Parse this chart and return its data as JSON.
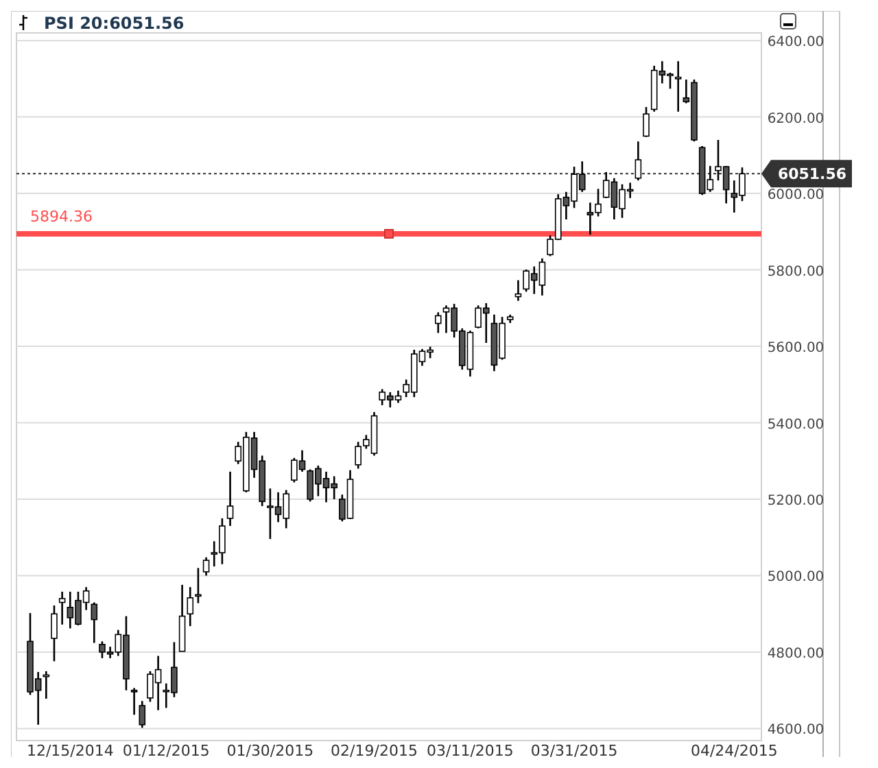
{
  "chart_data": {
    "type": "candlestick",
    "title": "PSI 20:6051.56",
    "categories": [
      null,
      null,
      null,
      null,
      null,
      "12/15/2014",
      null,
      null,
      null,
      null,
      null,
      null,
      null,
      null,
      null,
      null,
      null,
      "01/12/2015",
      null,
      null,
      null,
      null,
      null,
      null,
      null,
      null,
      null,
      null,
      null,
      null,
      "01/30/2015",
      null,
      null,
      null,
      null,
      null,
      null,
      null,
      null,
      null,
      null,
      null,
      null,
      "02/19/2015",
      null,
      null,
      null,
      null,
      null,
      null,
      null,
      null,
      null,
      null,
      null,
      "03/11/2015",
      null,
      null,
      null,
      null,
      null,
      null,
      null,
      null,
      null,
      null,
      null,
      null,
      "03/31/2015",
      null,
      null,
      null,
      null,
      null,
      null,
      null,
      null,
      null,
      null,
      null,
      null,
      null,
      null,
      null,
      null,
      null,
      null,
      null,
      "04/24/2015",
      null
    ],
    "ohlc": [
      [
        4828,
        4902,
        4688,
        4696
      ],
      [
        4730,
        4748,
        4610,
        4700
      ],
      [
        4736,
        4750,
        4678,
        4740
      ],
      [
        4836,
        4922,
        4776,
        4900
      ],
      [
        4930,
        4958,
        4872,
        4940
      ],
      [
        4917,
        4958,
        4862,
        4890
      ],
      [
        4935,
        4958,
        4870,
        4873
      ],
      [
        4930,
        4970,
        4910,
        4960
      ],
      [
        4925,
        4930,
        4824,
        4885
      ],
      [
        4820,
        4828,
        4784,
        4800
      ],
      [
        4800,
        4814,
        4784,
        4795
      ],
      [
        4800,
        4858,
        4790,
        4846
      ],
      [
        4844,
        4894,
        4700,
        4730
      ],
      [
        4700,
        4706,
        4636,
        4696
      ],
      [
        4660,
        4672,
        4602,
        4610
      ],
      [
        4680,
        4750,
        4670,
        4742
      ],
      [
        4720,
        4790,
        4648,
        4754
      ],
      [
        4700,
        4718,
        4654,
        4700
      ],
      [
        4760,
        4826,
        4682,
        4694
      ],
      [
        4802,
        4976,
        4802,
        4894
      ],
      [
        4900,
        4970,
        4868,
        4942
      ],
      [
        4950,
        5020,
        4928,
        4950
      ],
      [
        5010,
        5048,
        5000,
        5040
      ],
      [
        5060,
        5090,
        5024,
        5060
      ],
      [
        5060,
        5150,
        5030,
        5130
      ],
      [
        5150,
        5272,
        5130,
        5182
      ],
      [
        5300,
        5350,
        5292,
        5338
      ],
      [
        5222,
        5376,
        5218,
        5362
      ],
      [
        5360,
        5376,
        5256,
        5278
      ],
      [
        5300,
        5314,
        5182,
        5194
      ],
      [
        5180,
        5228,
        5096,
        5182
      ],
      [
        5180,
        5218,
        5140,
        5160
      ],
      [
        5150,
        5224,
        5124,
        5214
      ],
      [
        5250,
        5308,
        5244,
        5302
      ],
      [
        5300,
        5328,
        5272,
        5278
      ],
      [
        5274,
        5278,
        5194,
        5200
      ],
      [
        5280,
        5288,
        5208,
        5240
      ],
      [
        5254,
        5272,
        5192,
        5230
      ],
      [
        5240,
        5260,
        5200,
        5230
      ],
      [
        5200,
        5212,
        5142,
        5148
      ],
      [
        5150,
        5276,
        5148,
        5252
      ],
      [
        5290,
        5350,
        5280,
        5338
      ],
      [
        5340,
        5368,
        5332,
        5356
      ],
      [
        5320,
        5428,
        5314,
        5418
      ],
      [
        5460,
        5488,
        5446,
        5480
      ],
      [
        5470,
        5480,
        5440,
        5460
      ],
      [
        5460,
        5484,
        5452,
        5470
      ],
      [
        5480,
        5513,
        5467,
        5500
      ],
      [
        5480,
        5591,
        5467,
        5580
      ],
      [
        5560,
        5593,
        5549,
        5587
      ],
      [
        5585,
        5599,
        5569,
        5590
      ],
      [
        5660,
        5689,
        5635,
        5680
      ],
      [
        5690,
        5707,
        5635,
        5700
      ],
      [
        5700,
        5711,
        5623,
        5640
      ],
      [
        5640,
        5647,
        5539,
        5550
      ],
      [
        5540,
        5641,
        5521,
        5636
      ],
      [
        5650,
        5707,
        5647,
        5700
      ],
      [
        5700,
        5713,
        5609,
        5687
      ],
      [
        5660,
        5683,
        5535,
        5551
      ],
      [
        5569,
        5677,
        5565,
        5660
      ],
      [
        5670,
        5683,
        5661,
        5677
      ],
      [
        5730,
        5773,
        5719,
        5737
      ],
      [
        5750,
        5801,
        5743,
        5797
      ],
      [
        5790,
        5809,
        5737,
        5773
      ],
      [
        5760,
        5830,
        5733,
        5820
      ],
      [
        5840,
        5890,
        5836,
        5880
      ],
      [
        5880,
        5998,
        5878,
        5986
      ],
      [
        5990,
        6004,
        5932,
        5968
      ],
      [
        5980,
        6070,
        5962,
        6050
      ],
      [
        6050,
        6084,
        6004,
        6010
      ],
      [
        5950,
        5976,
        5892,
        5944
      ],
      [
        5950,
        6012,
        5940,
        5972
      ],
      [
        5990,
        6056,
        5988,
        6034
      ],
      [
        6030,
        6040,
        5932,
        5964
      ],
      [
        5960,
        6024,
        5936,
        6010
      ],
      [
        6010,
        6028,
        5988,
        6010
      ],
      [
        6040,
        6136,
        6034,
        6088
      ],
      [
        6150,
        6226,
        6148,
        6208
      ],
      [
        6220,
        6334,
        6214,
        6322
      ],
      [
        6320,
        6346,
        6288,
        6310
      ],
      [
        6310,
        6316,
        6274,
        6312
      ],
      [
        6300,
        6346,
        6214,
        6304
      ],
      [
        6250,
        6298,
        6236,
        6240
      ],
      [
        6290,
        6298,
        6136,
        6140
      ],
      [
        6120,
        6124,
        5996,
        6000
      ],
      [
        6010,
        6072,
        6004,
        6036
      ],
      [
        6060,
        6140,
        6034,
        6070
      ],
      [
        6070,
        6072,
        5974,
        6010
      ],
      [
        6000,
        6034,
        5950,
        5990
      ],
      [
        5995,
        6068,
        5980,
        6051.56
      ]
    ],
    "ylim": [
      4590,
      6420
    ],
    "yticks": [
      {
        "value": 4600,
        "label": "4600.00"
      },
      {
        "value": 4800,
        "label": "4800.00"
      },
      {
        "value": 5000,
        "label": "5000.00"
      },
      {
        "value": 5200,
        "label": "5200.00"
      },
      {
        "value": 5400,
        "label": "5400.00"
      },
      {
        "value": 5600,
        "label": "5600.00"
      },
      {
        "value": 5800,
        "label": "5800.00"
      },
      {
        "value": 6000,
        "label": "6000.00"
      },
      {
        "value": 6200,
        "label": "6200.00"
      },
      {
        "value": 6400,
        "label": "6400.00"
      }
    ],
    "grid": "y",
    "ref_lines": [
      {
        "axis": "y",
        "value": 5894.36,
        "label": "5894.36",
        "color": "#ff4d4d",
        "line_style": "solid"
      },
      {
        "axis": "y",
        "value": 6051.56,
        "label": "6051.56",
        "color": "#333333",
        "line_style": "dotted"
      }
    ]
  }
}
